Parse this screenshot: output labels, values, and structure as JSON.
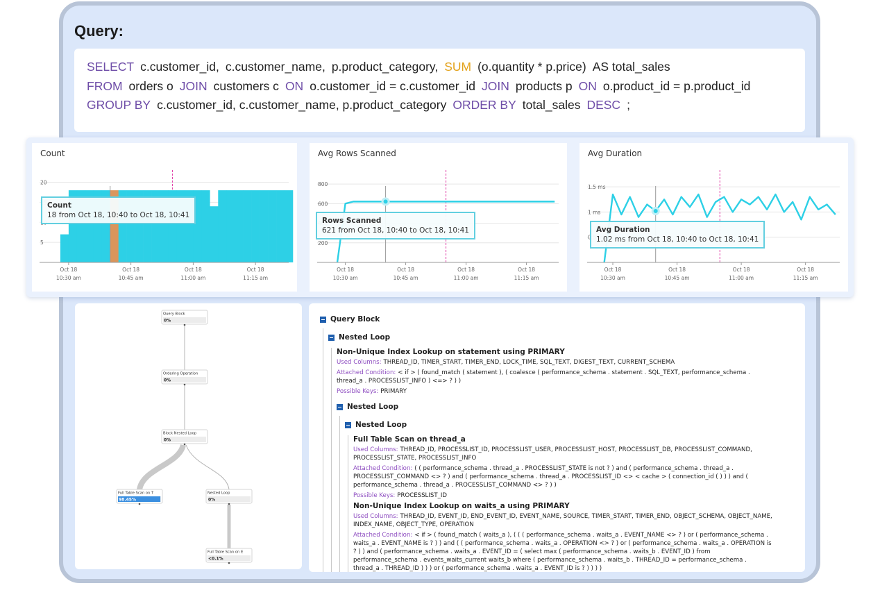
{
  "query": {
    "title": "Query:",
    "lines": [
      [
        {
          "text": "SELECT",
          "color": "#6f4ea8"
        },
        {
          "text": "c.customer_id,"
        },
        {
          "text": "c.customer_name,"
        },
        {
          "text": "p.product_category,"
        },
        {
          "text": "SUM",
          "color": "#e3a21a"
        },
        {
          "text": "(o.quantity * p.price)"
        },
        {
          "text": "AS total_sales"
        }
      ],
      [
        {
          "text": "FROM",
          "color": "#6f4ea8"
        },
        {
          "text": "orders o"
        },
        {
          "text": "JOIN",
          "color": "#6f4ea8"
        },
        {
          "text": "customers c"
        },
        {
          "text": "ON",
          "color": "#6f4ea8"
        },
        {
          "text": "o.customer_id = c.customer_id"
        },
        {
          "text": "JOIN",
          "color": "#6f4ea8"
        },
        {
          "text": "products p"
        },
        {
          "text": "ON",
          "color": "#6f4ea8"
        },
        {
          "text": "o.product_id = p.product_id"
        }
      ],
      [
        {
          "text": "GROUP BY",
          "color": "#6f4ea8"
        },
        {
          "text": "c.customer_id, c.customer_name, p.product_category"
        },
        {
          "text": "ORDER BY",
          "color": "#6f4ea8"
        },
        {
          "text": "total_sales"
        },
        {
          "text": "DESC",
          "color": "#6f4ea8"
        },
        {
          "text": ";"
        }
      ]
    ]
  },
  "chart_data": [
    {
      "type": "bar",
      "title": "Count",
      "color": "#2dd0e6",
      "hover_color": "#d9955c",
      "x": [
        "10:24",
        "10:26",
        "10:28",
        "10:30",
        "10:32",
        "10:34",
        "10:36",
        "10:38",
        "10:40",
        "10:42",
        "10:44",
        "10:46",
        "10:48",
        "10:50",
        "10:52",
        "10:54",
        "10:56",
        "10:58",
        "11:00",
        "11:02",
        "11:04",
        "11:06",
        "11:08",
        "11:10",
        "11:12",
        "11:14",
        "11:16",
        "11:18",
        "11:20",
        "11:22"
      ],
      "values": [
        null,
        null,
        7,
        18,
        18,
        18,
        18,
        18,
        18,
        18,
        18,
        18,
        18,
        18,
        18,
        18,
        18,
        18,
        18,
        18,
        14,
        18,
        18,
        18,
        18,
        18,
        18,
        18,
        18,
        18
      ],
      "xlim": [
        "10:23",
        "11:23"
      ],
      "ylim": [
        0,
        22
      ],
      "yticks": [
        5,
        10,
        15,
        20
      ],
      "xticks": [
        {
          "value": "10:30",
          "date": "Oct 18",
          "label": "10:30 am"
        },
        {
          "value": "10:45",
          "date": "Oct 18",
          "label": "10:45 am"
        },
        {
          "value": "11:00",
          "date": "Oct 18",
          "label": "11:00 am"
        },
        {
          "value": "11:15",
          "date": "Oct 18",
          "label": "11:15 am"
        }
      ],
      "hover": "10:40",
      "marker": "10:55",
      "tooltip": {
        "title": "Count",
        "text": "18 from Oct 18, 10:40 to Oct 18, 10:41"
      }
    },
    {
      "type": "line",
      "title": "Avg Rows Scanned",
      "color": "#2dd0e6",
      "x": [
        "10:24",
        "10:26",
        "10:28",
        "10:30",
        "10:32",
        "10:34",
        "10:36",
        "10:38",
        "10:40",
        "10:42",
        "10:44",
        "10:46",
        "10:48",
        "10:50",
        "10:52",
        "10:54",
        "10:56",
        "10:58",
        "11:00",
        "11:02",
        "11:04",
        "11:06",
        "11:08",
        "11:10",
        "11:12",
        "11:14",
        "11:16",
        "11:18",
        "11:20",
        "11:22"
      ],
      "values": [
        null,
        null,
        0,
        600,
        621,
        621,
        621,
        621,
        621,
        621,
        621,
        621,
        621,
        621,
        621,
        621,
        621,
        621,
        621,
        621,
        621,
        621,
        621,
        621,
        621,
        621,
        621,
        621,
        621,
        621
      ],
      "xlim": [
        "10:23",
        "11:23"
      ],
      "ylim": [
        0,
        900
      ],
      "yticks": [
        200,
        400,
        600,
        800
      ],
      "xticks": [
        {
          "value": "10:30",
          "date": "Oct 18",
          "label": "10:30 am"
        },
        {
          "value": "10:45",
          "date": "Oct 18",
          "label": "10:45 am"
        },
        {
          "value": "11:00",
          "date": "Oct 18",
          "label": "11:00 am"
        },
        {
          "value": "11:15",
          "date": "Oct 18",
          "label": "11:15 am"
        }
      ],
      "hover": "10:40",
      "marker": "10:55",
      "tooltip": {
        "title": "Rows Scanned",
        "text": "621 from Oct 18, 10:40 to Oct 18, 10:41"
      }
    },
    {
      "type": "line",
      "title": "Avg Duration",
      "color": "#2dd0e6",
      "x": [
        "10:24",
        "10:26",
        "10:28",
        "10:30",
        "10:32",
        "10:34",
        "10:36",
        "10:38",
        "10:40",
        "10:42",
        "10:44",
        "10:46",
        "10:48",
        "10:50",
        "10:52",
        "10:54",
        "10:56",
        "10:58",
        "11:00",
        "11:02",
        "11:04",
        "11:06",
        "11:08",
        "11:10",
        "11:12",
        "11:14",
        "11:16",
        "11:18",
        "11:20",
        "11:22"
      ],
      "values": [
        null,
        null,
        0,
        1.35,
        0.95,
        1.3,
        0.9,
        1.15,
        1.02,
        1.25,
        0.95,
        1.3,
        1.1,
        1.35,
        0.9,
        1.2,
        1.3,
        1.0,
        1.25,
        1.15,
        1.3,
        1.05,
        1.35,
        1.0,
        1.2,
        0.85,
        1.3,
        1.05,
        1.15,
        0.95
      ],
      "xlim": [
        "10:24",
        "11:23"
      ],
      "ylim": [
        0,
        1.75
      ],
      "yticks": [
        {
          "value": 0.5,
          "label": "0.5 ms"
        },
        {
          "value": 1,
          "label": "1 ms"
        },
        {
          "value": 1.5,
          "label": "1.5 ms"
        }
      ],
      "xticks": [
        {
          "value": "10:30",
          "date": "Oct 18",
          "label": "10:30 am"
        },
        {
          "value": "10:45",
          "date": "Oct 18",
          "label": "10:45 am"
        },
        {
          "value": "11:00",
          "date": "Oct 18",
          "label": "11:00 am"
        },
        {
          "value": "11:15",
          "date": "Oct 18",
          "label": "11:15 am"
        }
      ],
      "hover": "10:40",
      "marker": "10:55",
      "tooltip": {
        "title": "Avg Duration",
        "text": "1.02 ms from Oct 18, 10:40 to Oct 18, 10:41"
      }
    }
  ],
  "plan_diagram": {
    "nodes": [
      {
        "label": "Query Block",
        "value": 0,
        "value_label": "0%"
      },
      {
        "label": "Ordering Operation",
        "value": 0,
        "value_label": "0%"
      },
      {
        "label": "Block Nested Loop",
        "value": 0,
        "value_label": "0%"
      },
      {
        "label": "Full Table Scan on T",
        "value": 98.45,
        "value_label": "98.45%"
      },
      {
        "label": "Nested Loop",
        "value": 0,
        "value_label": "0%"
      },
      {
        "label": "Full Table Scan on E",
        "value": 0.1,
        "value_label": "<0.1%"
      }
    ]
  },
  "plan_tree": {
    "label": "Query Block",
    "children": [
      {
        "label": "Nested Loop",
        "children": [
          {
            "heading": "Non-Unique Index Lookup on statement using PRIMARY",
            "details": [
              {
                "key": "Used Columns:",
                "value": "THREAD_ID, TIMER_START, TIMER_END, LOCK_TIME, SQL_TEXT, DIGEST_TEXT, CURRENT_SCHEMA"
              },
              {
                "key": "Attached Condition:",
                "value": "< if > ( found_match ( statement ), ( coalesce ( performance_schema . statement . SQL_TEXT, performance_schema . thread_a . PROCESSLIST_INFO ) <=> ? ) )"
              },
              {
                "key": "Possible Keys:",
                "value": "PRIMARY"
              }
            ]
          },
          {
            "label": "Nested Loop",
            "children": [
              {
                "label": "Nested Loop",
                "children": [
                  {
                    "heading": "Full Table Scan on thread_a",
                    "details": [
                      {
                        "key": "Used Columns:",
                        "value": "THREAD_ID, PROCESSLIST_ID, PROCESSLIST_USER, PROCESSLIST_HOST, PROCESSLIST_DB, PROCESSLIST_COMMAND, PROCESSLIST_STATE, PROCESSLIST_INFO"
                      },
                      {
                        "key": "Attached Condition:",
                        "value": "( ( performance_schema . thread_a . PROCESSLIST_STATE is not ? ) and ( performance_schema . thread_a . PROCESSLIST_COMMAND <> ? ) and ( performance_schema . thread_a . PROCESSLIST_ID <> < cache > ( connection_id ( ) ) ) and ( performance_schema . thread_a . PROCESSLIST_COMMAND <> ? ) )"
                      },
                      {
                        "key": "Possible Keys:",
                        "value": "PROCESSLIST_ID"
                      }
                    ]
                  },
                  {
                    "heading": "Non-Unique Index Lookup on waits_a using PRIMARY",
                    "details": [
                      {
                        "key": "Used Columns:",
                        "value": "THREAD_ID, EVENT_ID, END_EVENT_ID, EVENT_NAME, SOURCE, TIMER_START, TIMER_END, OBJECT_SCHEMA, OBJECT_NAME, INDEX_NAME, OBJECT_TYPE, OPERATION"
                      },
                      {
                        "key": "Attached Condition:",
                        "value": "< if > ( found_match ( waits_a ), ( ( ( performance_schema . waits_a . EVENT_NAME <> ? ) or ( performance_schema . waits_a . EVENT_NAME is ? ) ) and ( ( performance_schema . waits_a . OPERATION <> ? ) or ( performance_schema . waits_a . OPERATION is ? ) ) and ( performance_schema . waits_a . EVENT_ID = ( select max ( performance_schema . waits_b . EVENT_ID ) from performance_schema . events_waits_current waits_b where ( performance_schema . waits_b . THREAD_ID = performance_schema . thread_a . THREAD_ID ) ) ) or ( performance_schema . waits_a . EVENT_ID is ? ) ) ) )"
                      }
                    ]
                  }
                ]
              }
            ]
          }
        ]
      }
    ]
  }
}
